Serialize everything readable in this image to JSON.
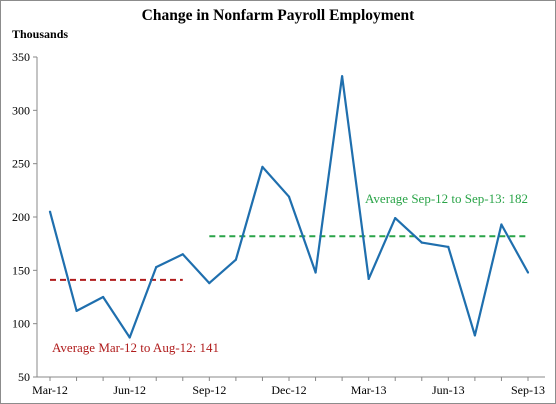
{
  "chart_data": {
    "type": "line",
    "title": "Change in Nonfarm Payroll Employment",
    "ylabel": "Thousands",
    "xlabel": "",
    "ylim": [
      50,
      350
    ],
    "yticks": [
      50,
      100,
      150,
      200,
      250,
      300,
      350
    ],
    "x_tick_labels": [
      "Mar-12",
      "Jun-12",
      "Sep-12",
      "Dec-12",
      "Mar-13",
      "Jun-13",
      "Sep-13"
    ],
    "x": [
      "Mar-12",
      "Apr-12",
      "May-12",
      "Jun-12",
      "Jul-12",
      "Aug-12",
      "Sep-12",
      "Oct-12",
      "Nov-12",
      "Dec-12",
      "Jan-13",
      "Feb-13",
      "Mar-13",
      "Apr-13",
      "May-13",
      "Jun-13",
      "Jul-13",
      "Aug-13",
      "Sep-13"
    ],
    "series": [
      {
        "values": [
          205,
          112,
          125,
          87,
          153,
          165,
          138,
          160,
          247,
          219,
          148,
          332,
          142,
          199,
          176,
          172,
          89,
          193,
          148
        ],
        "color": "#1f6fae"
      }
    ],
    "averages": [
      {
        "label": "Average Mar-12 to Aug-12: 141",
        "value": 141,
        "from": "Mar-12",
        "to": "Aug-12",
        "color": "#b01c1c"
      },
      {
        "label": "Average Sep-12 to Sep-13: 182",
        "value": 182,
        "from": "Sep-12",
        "to": "Sep-13",
        "color": "#2aa448"
      }
    ],
    "grid": false,
    "legend": "none"
  }
}
